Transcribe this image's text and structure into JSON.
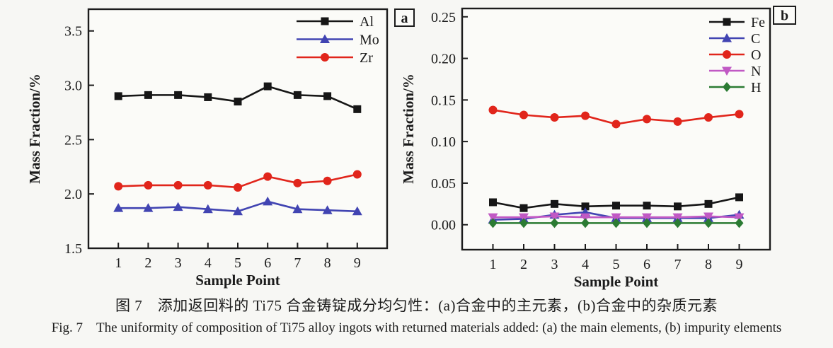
{
  "figure": {
    "caption_zh": "图 7　添加返回料的 Ti75 合金铸锭成分均匀性：(a)合金中的主元素，(b)合金中的杂质元素",
    "caption_en": "Fig. 7　The uniformity of composition of Ti75 alloy ingots with returned materials added: (a) the main elements, (b) impurity elements"
  },
  "chart_data": [
    {
      "type": "line",
      "panel_label": "a",
      "xlabel": "Sample Point",
      "ylabel": "Mass Fraction/%",
      "x": [
        1,
        2,
        3,
        4,
        5,
        6,
        7,
        8,
        9
      ],
      "xlim": [
        0,
        10
      ],
      "ylim": [
        1.5,
        3.7
      ],
      "yticks": [
        1.5,
        2.0,
        2.5,
        3.0,
        3.5
      ],
      "ytick_labels": [
        "1.5",
        "2.0",
        "2.5",
        "3.0",
        "3.5"
      ],
      "xtick_labels": [
        "1",
        "2",
        "3",
        "4",
        "5",
        "6",
        "7",
        "8",
        "9"
      ],
      "grid": false,
      "legend_position": "top-right-inside",
      "series": [
        {
          "name": "Al",
          "color": "#161616",
          "marker": "square",
          "values": [
            2.9,
            2.91,
            2.91,
            2.89,
            2.85,
            2.99,
            2.91,
            2.9,
            2.78
          ]
        },
        {
          "name": "Mo",
          "color": "#4144b2",
          "marker": "triangle-up",
          "values": [
            1.87,
            1.87,
            1.88,
            1.86,
            1.84,
            1.93,
            1.86,
            1.85,
            1.84
          ]
        },
        {
          "name": "Zr",
          "color": "#e1251b",
          "marker": "circle",
          "values": [
            2.07,
            2.08,
            2.08,
            2.08,
            2.06,
            2.16,
            2.1,
            2.12,
            2.18
          ]
        }
      ]
    },
    {
      "type": "line",
      "panel_label": "b",
      "xlabel": "Sample Point",
      "ylabel": "Mass Fraction/%",
      "x": [
        1,
        2,
        3,
        4,
        5,
        6,
        7,
        8,
        9
      ],
      "xlim": [
        0,
        10
      ],
      "ylim": [
        -0.03,
        0.26
      ],
      "yticks": [
        0.0,
        0.05,
        0.1,
        0.15,
        0.2,
        0.25
      ],
      "ytick_labels": [
        "0.00",
        "0.05",
        "0.10",
        "0.15",
        "0.20",
        "0.25"
      ],
      "xtick_labels": [
        "1",
        "2",
        "3",
        "4",
        "5",
        "6",
        "7",
        "8",
        "9"
      ],
      "grid": false,
      "legend_position": "top-right-inside",
      "series": [
        {
          "name": "Fe",
          "color": "#161616",
          "marker": "square",
          "values": [
            0.027,
            0.02,
            0.025,
            0.022,
            0.023,
            0.023,
            0.022,
            0.025,
            0.033
          ]
        },
        {
          "name": "C",
          "color": "#4144b2",
          "marker": "triangle-up",
          "values": [
            0.006,
            0.007,
            0.012,
            0.015,
            0.008,
            0.008,
            0.008,
            0.008,
            0.012
          ]
        },
        {
          "name": "O",
          "color": "#e1251b",
          "marker": "circle",
          "values": [
            0.138,
            0.132,
            0.129,
            0.131,
            0.121,
            0.127,
            0.124,
            0.129,
            0.133
          ]
        },
        {
          "name": "N",
          "color": "#c159c4",
          "marker": "triangle-down",
          "values": [
            0.009,
            0.009,
            0.01,
            0.009,
            0.009,
            0.009,
            0.009,
            0.01,
            0.009
          ]
        },
        {
          "name": "H",
          "color": "#2b7b33",
          "marker": "diamond",
          "values": [
            0.002,
            0.002,
            0.002,
            0.002,
            0.002,
            0.002,
            0.002,
            0.002,
            0.002
          ]
        }
      ]
    }
  ]
}
